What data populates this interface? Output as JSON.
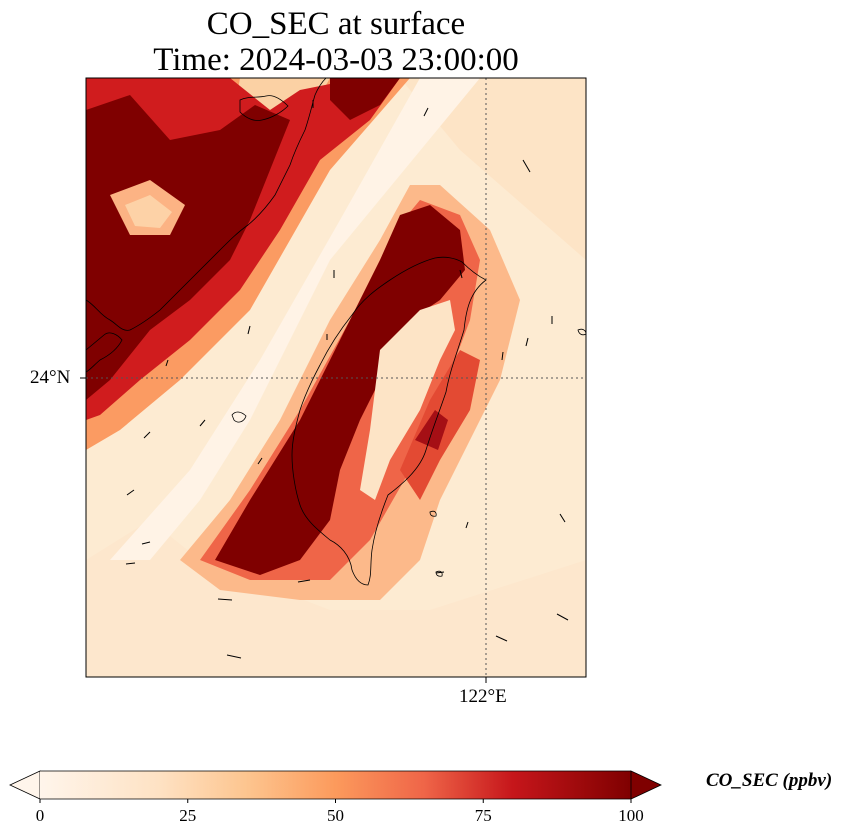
{
  "title": {
    "line1": "CO_SEC at surface",
    "line2": "Time: 2024-03-03 23:00:00"
  },
  "axes": {
    "lat_tick": "24°N",
    "lon_tick": "122°E",
    "gridlines": "dotted"
  },
  "colorbar": {
    "label": "CO_SEC (ppbv)",
    "ticks": [
      "0",
      "25",
      "50",
      "75",
      "100"
    ],
    "min": 0,
    "max": 100,
    "extend": "both",
    "colormap": [
      "#fff5eb",
      "#fdd9b4",
      "#fdab67",
      "#f16813",
      "#b30000",
      "#7f0000"
    ]
  },
  "map": {
    "background_color": "#fdebd2",
    "saturated_color": "#7f0000",
    "features": [
      "coastlines",
      "wind-vectors"
    ]
  }
}
